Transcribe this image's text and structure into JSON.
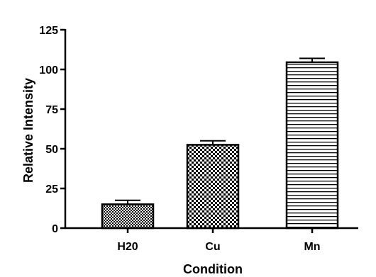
{
  "chart_data": {
    "type": "bar",
    "title": "",
    "xlabel": "Condition",
    "ylabel": "Relative Intensity",
    "categories": [
      "H20",
      "Cu",
      "Mn"
    ],
    "values": [
      15,
      52.5,
      104.5
    ],
    "error": [
      2.5,
      2.5,
      2.5
    ],
    "ylim": [
      0,
      125
    ],
    "yticks": [
      0,
      25,
      50,
      75,
      100,
      125
    ],
    "ytick_labels": [
      "0",
      "25",
      "50",
      "75",
      "100",
      "125"
    ],
    "fill_patterns": [
      "fine-checker",
      "checker",
      "horizontal-lines"
    ],
    "bar_color": "#000000",
    "grid": false,
    "legend": "none"
  }
}
